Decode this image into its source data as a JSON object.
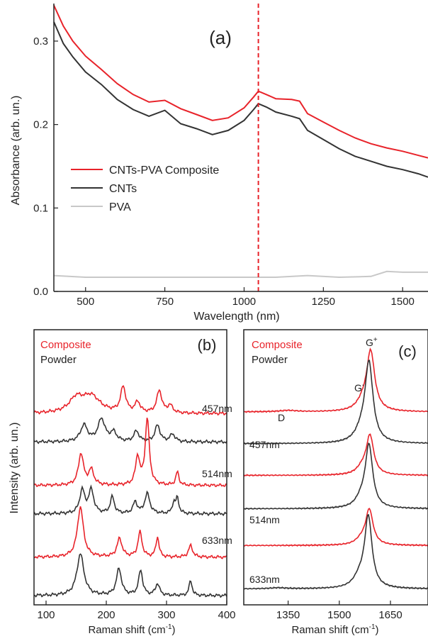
{
  "chart_data": [
    {
      "panel": "a",
      "type": "line",
      "panel_label": "(a)",
      "xlabel": "Wavelength (nm)",
      "ylabel": "Absorbance (arb. un.)",
      "xlim": [
        400,
        1580
      ],
      "ylim": [
        0,
        0.345
      ],
      "xticks": [
        500,
        750,
        1000,
        1250,
        1500
      ],
      "xtick_labels": [
        "500",
        "750",
        "1000",
        "1250",
        "1500"
      ],
      "yticks": [
        0.0,
        0.1,
        0.2,
        0.3
      ],
      "ytick_labels": [
        "0.0",
        "0.1",
        "0.2",
        "0.3"
      ],
      "vline": 1045,
      "legend_position": "left-middle",
      "series": [
        {
          "name": "CNTs-PVA Composite",
          "color": "#e8232a",
          "x": [
            400,
            430,
            460,
            500,
            550,
            600,
            650,
            700,
            750,
            800,
            850,
            900,
            950,
            1000,
            1030,
            1045,
            1070,
            1100,
            1150,
            1175,
            1200,
            1250,
            1300,
            1350,
            1400,
            1450,
            1500,
            1550,
            1580
          ],
          "y": [
            0.343,
            0.318,
            0.3,
            0.282,
            0.266,
            0.249,
            0.236,
            0.227,
            0.229,
            0.219,
            0.212,
            0.205,
            0.208,
            0.22,
            0.233,
            0.24,
            0.236,
            0.231,
            0.23,
            0.228,
            0.213,
            0.203,
            0.193,
            0.184,
            0.177,
            0.172,
            0.168,
            0.163,
            0.16
          ]
        },
        {
          "name": "CNTs",
          "color": "#333333",
          "x": [
            400,
            430,
            460,
            500,
            550,
            600,
            650,
            700,
            750,
            800,
            850,
            900,
            950,
            1000,
            1030,
            1045,
            1070,
            1100,
            1150,
            1175,
            1200,
            1250,
            1300,
            1350,
            1400,
            1450,
            1500,
            1550,
            1580
          ],
          "y": [
            0.323,
            0.297,
            0.281,
            0.263,
            0.248,
            0.23,
            0.218,
            0.21,
            0.217,
            0.201,
            0.195,
            0.188,
            0.193,
            0.205,
            0.218,
            0.225,
            0.221,
            0.215,
            0.21,
            0.207,
            0.193,
            0.182,
            0.171,
            0.162,
            0.156,
            0.15,
            0.146,
            0.141,
            0.137
          ]
        },
        {
          "name": "PVA",
          "color": "#c8c8c8",
          "x": [
            400,
            500,
            700,
            900,
            1100,
            1200,
            1300,
            1400,
            1450,
            1500,
            1580
          ],
          "y": [
            0.019,
            0.017,
            0.017,
            0.017,
            0.017,
            0.019,
            0.017,
            0.018,
            0.024,
            0.023,
            0.023
          ]
        }
      ]
    },
    {
      "panel": "b",
      "type": "line",
      "panel_label": "(b)",
      "xlabel": "Raman shift (cm",
      "xlabel_sup": "-1",
      "xlabel_end": ")",
      "ylabel": "Intensity (arb. un.)",
      "xlim": [
        80,
        400
      ],
      "xticks": [
        100,
        200,
        300,
        400
      ],
      "xtick_labels": [
        "100",
        "200",
        "300",
        "400"
      ],
      "legend": [
        "Composite",
        "Powder"
      ],
      "wavelength_labels": [
        "457nm",
        "514nm",
        "633nm"
      ],
      "series": [
        {
          "name": "Composite",
          "color": "#e8232a",
          "group": "457nm",
          "baseline": 5.45,
          "scale": 0.9,
          "peaks": [
            [
              150,
              0.45,
              14
            ],
            [
              175,
              0.55,
              18
            ],
            [
              228,
              0.85,
              5
            ],
            [
              252,
              0.35,
              5
            ],
            [
              288,
              0.75,
              5
            ],
            [
              306,
              0.25,
              5
            ]
          ]
        },
        {
          "name": "Powder",
          "color": "#333333",
          "group": "457nm",
          "baseline": 4.6,
          "scale": 0.9,
          "peaks": [
            [
              163,
              0.55,
              7
            ],
            [
              192,
              0.75,
              7
            ],
            [
              212,
              0.3,
              6
            ],
            [
              250,
              0.35,
              5
            ],
            [
              285,
              0.55,
              5
            ],
            [
              310,
              0.25,
              5
            ]
          ]
        },
        {
          "name": "Composite",
          "color": "#e8232a",
          "group": "514nm",
          "baseline": 3.3,
          "scale": 1.0,
          "peaks": [
            [
              158,
              0.95,
              5
            ],
            [
              175,
              0.45,
              5
            ],
            [
              252,
              0.85,
              4
            ],
            [
              268,
              2.0,
              4
            ],
            [
              318,
              0.4,
              3
            ]
          ]
        },
        {
          "name": "Powder",
          "color": "#333333",
          "group": "514nm",
          "baseline": 2.45,
          "scale": 1.0,
          "peaks": [
            [
              160,
              0.7,
              5
            ],
            [
              175,
              0.7,
              5
            ],
            [
              210,
              0.5,
              4
            ],
            [
              248,
              0.35,
              4
            ],
            [
              268,
              0.6,
              5
            ],
            [
              312,
              0.3,
              3
            ],
            [
              318,
              0.45,
              3
            ]
          ]
        },
        {
          "name": "Composite",
          "color": "#e8232a",
          "group": "633nm",
          "baseline": 1.15,
          "scale": 1.0,
          "peaks": [
            [
              157,
              1.5,
              6
            ],
            [
              222,
              0.55,
              5
            ],
            [
              256,
              0.75,
              4
            ],
            [
              285,
              0.6,
              3
            ],
            [
              340,
              0.35,
              4
            ]
          ]
        },
        {
          "name": "Powder",
          "color": "#333333",
          "group": "633nm",
          "baseline": 0.0,
          "scale": 1.0,
          "peaks": [
            [
              157,
              1.25,
              7
            ],
            [
              221,
              0.8,
              5
            ],
            [
              257,
              0.75,
              4
            ],
            [
              285,
              0.35,
              4
            ],
            [
              340,
              0.45,
              3
            ]
          ]
        }
      ]
    },
    {
      "panel": "c",
      "type": "line",
      "panel_label": "(c)",
      "xlabel": "Raman shift (cm",
      "xlabel_sup": "-1",
      "xlabel_end": ")",
      "xlim": [
        1220,
        1760
      ],
      "xticks": [
        1350,
        1500,
        1650
      ],
      "xtick_labels": [
        "1350",
        "1500",
        "1650"
      ],
      "legend": [
        "Composite",
        "Powder"
      ],
      "wavelength_labels": [
        "457nm",
        "514nm",
        "633nm"
      ],
      "peak_labels": {
        "d": "D",
        "g_minus": "G",
        "g_minus_sup": "-",
        "g_plus": "G",
        "g_plus_sup": "+"
      },
      "series": [
        {
          "name": "Composite",
          "color": "#e8232a",
          "group": "457nm",
          "baseline": 5.5,
          "peaks": [
            [
              1592,
              1.75,
              14
            ],
            [
              1570,
              0.25,
              22
            ],
            [
              1350,
              0.04,
              30
            ]
          ]
        },
        {
          "name": "Powder",
          "color": "#333333",
          "group": "457nm",
          "baseline": 4.55,
          "peaks": [
            [
              1587,
              2.35,
              14
            ],
            [
              1565,
              0.3,
              22
            ]
          ]
        },
        {
          "name": "Composite",
          "color": "#e8232a",
          "group": "514nm",
          "baseline": 3.6,
          "peaks": [
            [
              1590,
              1.15,
              13
            ],
            [
              1568,
              0.2,
              20
            ]
          ]
        },
        {
          "name": "Powder",
          "color": "#333333",
          "group": "514nm",
          "baseline": 2.6,
          "peaks": [
            [
              1587,
              1.85,
              13
            ],
            [
              1565,
              0.25,
              20
            ]
          ]
        },
        {
          "name": "Composite",
          "color": "#e8232a",
          "group": "633nm",
          "baseline": 1.5,
          "peaks": [
            [
              1588,
              1.05,
              13
            ],
            [
              1565,
              0.15,
              20
            ]
          ]
        },
        {
          "name": "Powder",
          "color": "#333333",
          "group": "633nm",
          "baseline": 0.2,
          "peaks": [
            [
              1585,
              2.1,
              13
            ],
            [
              1560,
              0.3,
              22
            ],
            [
              1320,
              0.03,
              30
            ]
          ]
        }
      ]
    }
  ]
}
